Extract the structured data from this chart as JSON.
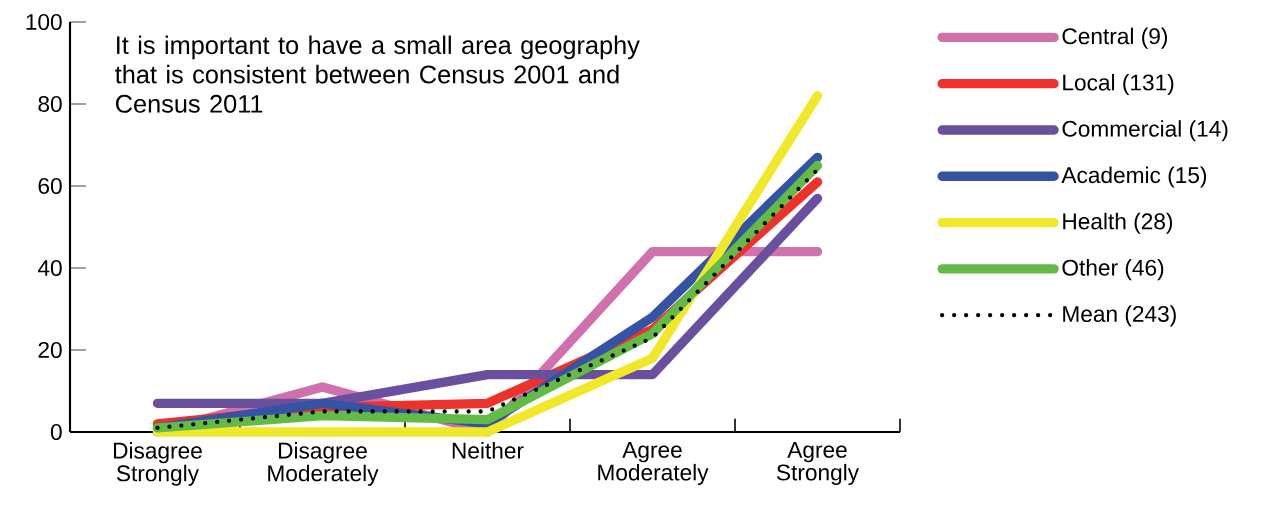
{
  "chart_data": {
    "type": "line",
    "title": "It is important to have a small area geography that is consistent between Census 2001 and Census 2011",
    "categories": [
      "Disagree Strongly",
      "Disagree Moderately",
      "Neither",
      "Agree Moderately",
      "Agree Strongly"
    ],
    "ylim": [
      0,
      100
    ],
    "yticks": [
      0,
      20,
      40,
      60,
      80,
      100
    ],
    "grid": false,
    "legend": "top right",
    "series": [
      {
        "name": "Central (9)",
        "color": "#d070ac",
        "values": [
          0,
          11,
          0,
          44,
          44
        ]
      },
      {
        "name": "Local (131)",
        "color": "#ee322b",
        "values": [
          2,
          6,
          7,
          25,
          61
        ]
      },
      {
        "name": "Commercial (14)",
        "color": "#6a4f9f",
        "values": [
          7,
          7,
          14,
          14,
          57
        ]
      },
      {
        "name": "Academic (15)",
        "color": "#3553a4",
        "values": [
          1,
          7,
          2,
          28,
          67
        ]
      },
      {
        "name": "Health (28)",
        "color": "#f0e829",
        "values": [
          0,
          0,
          0,
          18,
          82
        ]
      },
      {
        "name": "Other (46)",
        "color": "#62bb47",
        "values": [
          1,
          4,
          3,
          24,
          65
        ]
      },
      {
        "name": "Mean (243)",
        "color": "#000000",
        "line_style": "dotted",
        "values": [
          1,
          5,
          5,
          23,
          64
        ]
      }
    ]
  }
}
